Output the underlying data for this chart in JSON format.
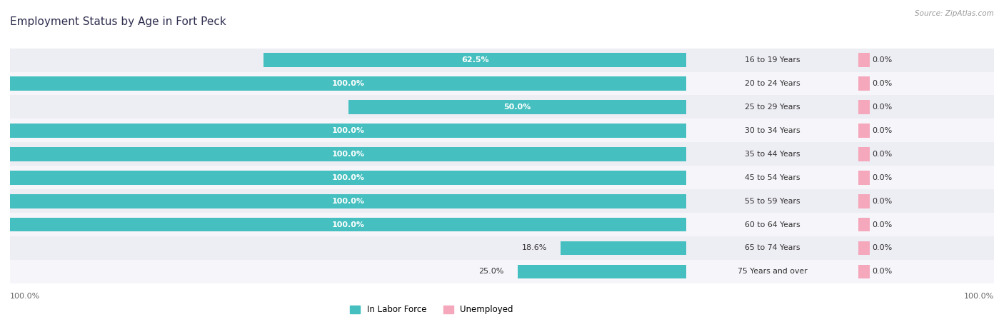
{
  "title": "Employment Status by Age in Fort Peck",
  "source": "Source: ZipAtlas.com",
  "age_groups": [
    "16 to 19 Years",
    "20 to 24 Years",
    "25 to 29 Years",
    "30 to 34 Years",
    "35 to 44 Years",
    "45 to 54 Years",
    "55 to 59 Years",
    "60 to 64 Years",
    "65 to 74 Years",
    "75 Years and over"
  ],
  "in_labor_force": [
    62.5,
    100.0,
    50.0,
    100.0,
    100.0,
    100.0,
    100.0,
    100.0,
    18.6,
    25.0
  ],
  "unemployed": [
    0.0,
    0.0,
    0.0,
    0.0,
    0.0,
    0.0,
    0.0,
    0.0,
    0.0,
    0.0
  ],
  "labor_color": "#45bfbf",
  "unemployed_color": "#f5a8bc",
  "row_bg_colors": [
    "#ededf4",
    "#f5f5fa",
    "#ededf4",
    "#f5f5fa",
    "#ededf4",
    "#f5f5fa",
    "#ededf4",
    "#f5f5fa",
    "#ededf4",
    "#f5f5fa"
  ],
  "label_color": "#333333",
  "title_color": "#2d2d4e",
  "axis_label_color": "#666666",
  "source_color": "#999999",
  "bar_height": 0.6,
  "figsize": [
    14.06,
    4.51
  ],
  "dpi": 100,
  "unemployed_fixed_pct": 8.0,
  "max_labor": 100.0,
  "max_unemployed": 100.0
}
